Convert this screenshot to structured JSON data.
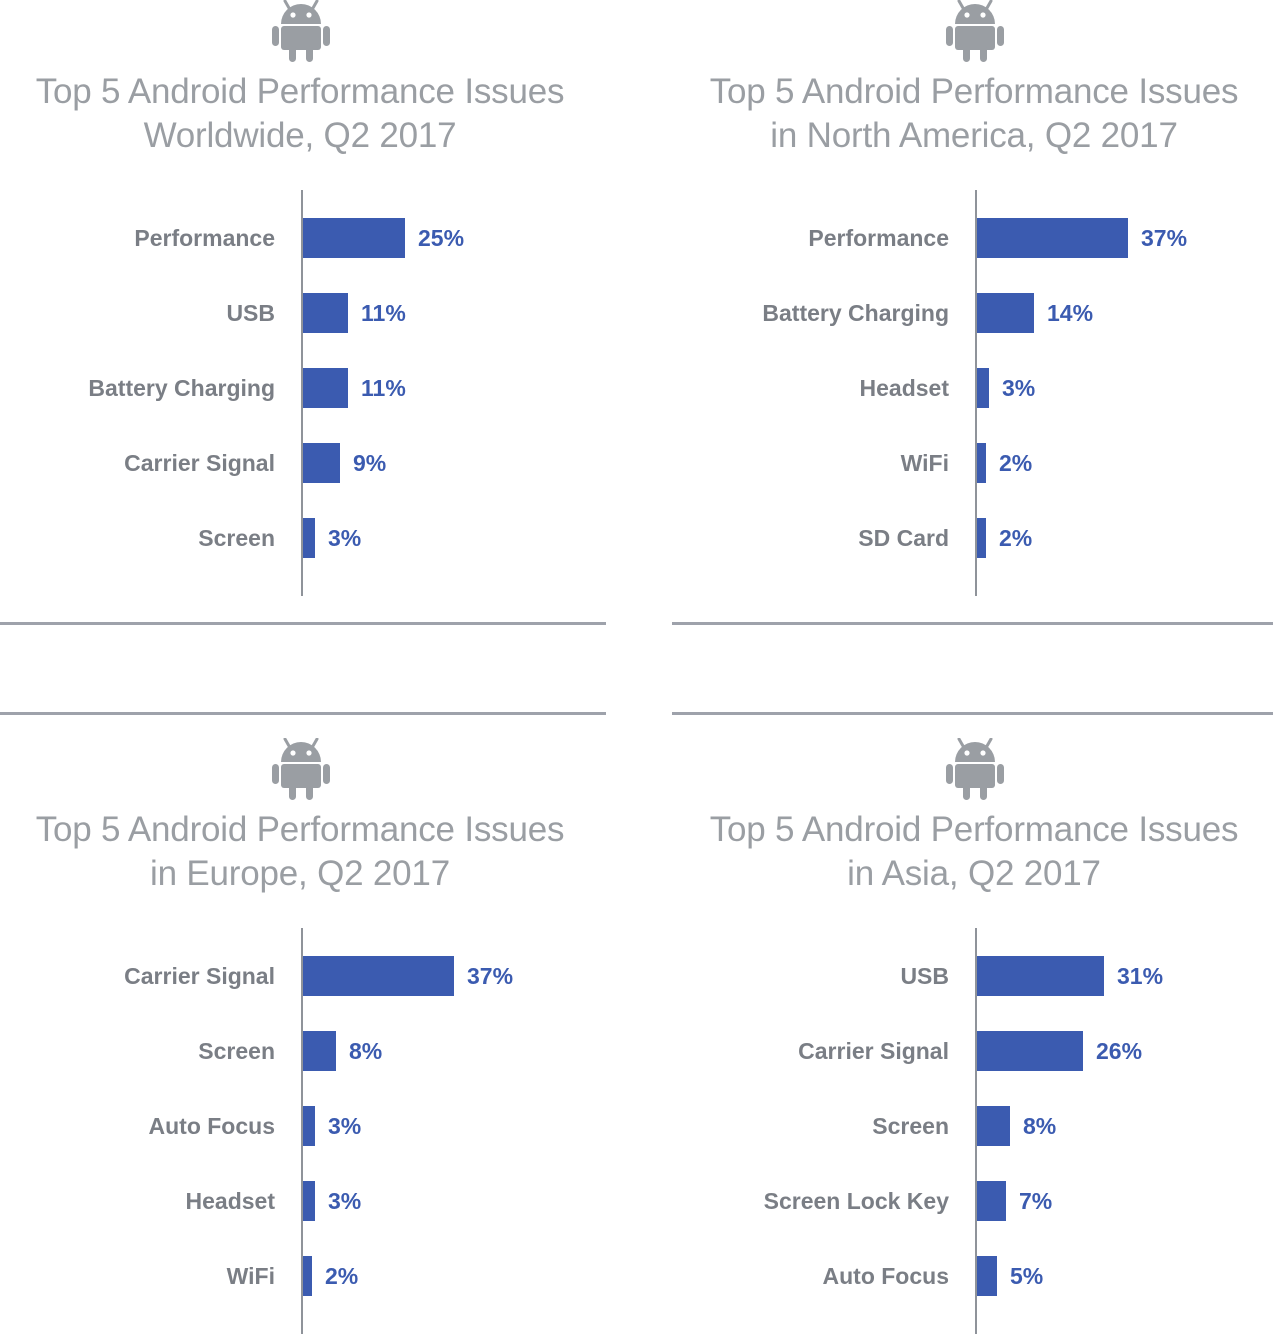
{
  "colors": {
    "bar": "#3b5bb0",
    "title": "#9a9ea3",
    "label": "#7a7e85",
    "axis": "#8f939a",
    "divider": "#9ea2ab"
  },
  "icons": {
    "panel_icon": "android-robot-icon"
  },
  "chart_data": [
    {
      "type": "bar",
      "orientation": "horizontal",
      "title": [
        "Top 5 Android Performance Issues",
        "Worldwide, Q2 2017"
      ],
      "categories": [
        "Performance",
        "USB",
        "Battery Charging",
        "Carrier Signal",
        "Screen"
      ],
      "values": [
        25,
        11,
        11,
        9,
        3
      ],
      "value_labels": [
        "25%",
        "11%",
        "11%",
        "9%",
        "3%"
      ],
      "xlim": [
        0,
        37
      ],
      "grid": false
    },
    {
      "type": "bar",
      "orientation": "horizontal",
      "title": [
        "Top 5 Android Performance Issues",
        "in North America, Q2 2017"
      ],
      "categories": [
        "Performance",
        "Battery Charging",
        "Headset",
        "WiFi",
        "SD Card"
      ],
      "values": [
        37,
        14,
        3,
        2,
        2
      ],
      "value_labels": [
        "37%",
        "14%",
        "3%",
        "2%",
        "2%"
      ],
      "xlim": [
        0,
        37
      ],
      "grid": false
    },
    {
      "type": "bar",
      "orientation": "horizontal",
      "title": [
        "Top 5 Android Performance Issues",
        "in Europe, Q2 2017"
      ],
      "categories": [
        "Carrier Signal",
        "Screen",
        "Auto Focus",
        "Headset",
        "WiFi"
      ],
      "values": [
        37,
        8,
        3,
        3,
        2
      ],
      "value_labels": [
        "37%",
        "8%",
        "3%",
        "3%",
        "2%"
      ],
      "xlim": [
        0,
        37
      ],
      "grid": false
    },
    {
      "type": "bar",
      "orientation": "horizontal",
      "title": [
        "Top 5 Android Performance Issues",
        "in Asia, Q2 2017"
      ],
      "categories": [
        "USB",
        "Carrier Signal",
        "Screen",
        "Screen Lock Key",
        "Auto Focus"
      ],
      "values": [
        31,
        26,
        8,
        7,
        5
      ],
      "value_labels": [
        "31%",
        "26%",
        "8%",
        "7%",
        "5%"
      ],
      "xlim": [
        0,
        37
      ],
      "grid": false
    }
  ]
}
